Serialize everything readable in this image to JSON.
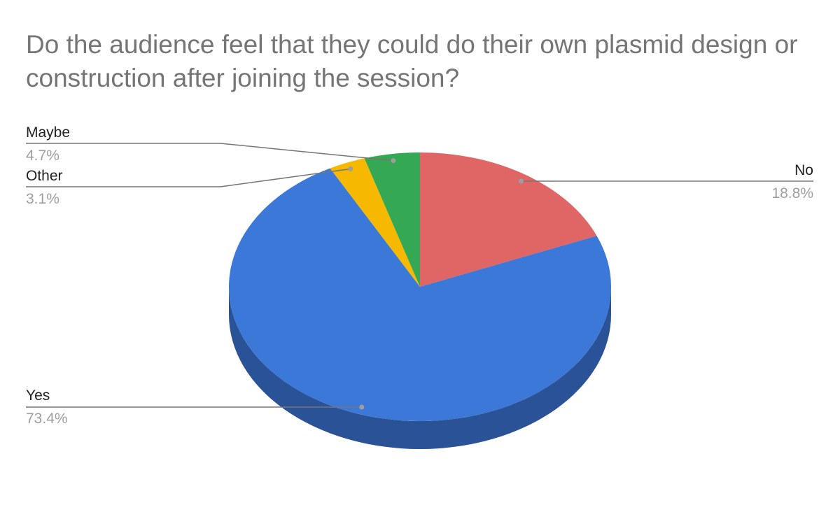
{
  "chart_data": {
    "type": "pie",
    "style": "3d",
    "title": "Do the audience feel that they could do their own plasmid design or construction after joining the session?",
    "slices": [
      {
        "label": "No",
        "value": 18.8,
        "value_label": "18.8%",
        "color": "#e06666",
        "side_color": "#a14a4a"
      },
      {
        "label": "Yes",
        "value": 73.4,
        "value_label": "73.4%",
        "color": "#3c78d8",
        "side_color": "#2a5296"
      },
      {
        "label": "Other",
        "value": 3.1,
        "value_label": "3.1%",
        "color": "#f6b900",
        "side_color": "#b38700"
      },
      {
        "label": "Maybe",
        "value": 4.7,
        "value_label": "4.7%",
        "color": "#34a853",
        "side_color": "#25783b"
      }
    ],
    "legend": "labeled",
    "leader_color": "#757575"
  }
}
